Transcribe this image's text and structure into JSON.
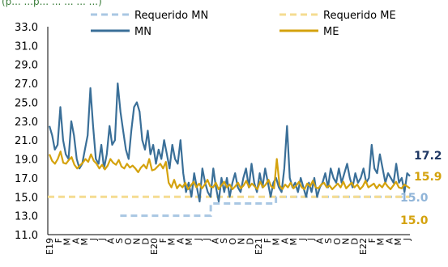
{
  "header_fragment": "(p... ...p... ... ... ... ...)",
  "chart_data": {
    "type": "line",
    "ylim": [
      11.0,
      33.0
    ],
    "yticks": [
      "11.0",
      "13.0",
      "15.0",
      "17.0",
      "19.0",
      "21.0",
      "23.0",
      "25.0",
      "27.0",
      "29.0",
      "31.0",
      "33.0"
    ],
    "x_labels": [
      "E19",
      "F",
      "M",
      "A",
      "M",
      "J",
      "J",
      "A",
      "S",
      "O",
      "N",
      "D",
      "E20",
      "F",
      "M",
      "A",
      "M",
      "J",
      "J",
      "A",
      "S",
      "O",
      "N",
      "D",
      "E21",
      "F",
      "M",
      "A",
      "M",
      "J",
      "J",
      "A",
      "S",
      "O",
      "N",
      "D",
      "E22",
      "F",
      "M",
      "A",
      "M",
      "J"
    ],
    "legend": [
      {
        "name": "Requerido MN",
        "style": "dashed",
        "color": "#a9c7e3"
      },
      {
        "name": "Requerido ME",
        "style": "dashed",
        "color": "#f5dc91"
      },
      {
        "name": "MN",
        "style": "solid",
        "color": "#3a6f98"
      },
      {
        "name": "ME",
        "style": "solid",
        "color": "#d4a20d"
      }
    ],
    "series": [
      {
        "name": "MN",
        "values": [
          22.5,
          21.5,
          20.0,
          20.5,
          24.5,
          21.0,
          19.5,
          19.0,
          23.0,
          21.5,
          19.0,
          18.0,
          18.5,
          20.0,
          21.5,
          26.5,
          22.5,
          19.0,
          18.5,
          20.5,
          18.0,
          19.5,
          22.5,
          20.5,
          21.0,
          27.0,
          24.0,
          22.0,
          20.0,
          19.0,
          22.0,
          24.5,
          25.0,
          24.0,
          21.0,
          20.0,
          22.0,
          19.5,
          20.5,
          18.5,
          20.0,
          19.0,
          21.0,
          19.5,
          18.0,
          20.5,
          19.0,
          18.5,
          21.0,
          17.5,
          15.5,
          16.5,
          15.0,
          17.5,
          16.0,
          14.5,
          18.0,
          16.5,
          15.5,
          15.0,
          18.0,
          16.0,
          14.5,
          17.0,
          15.5,
          17.0,
          15.0,
          16.5,
          17.5,
          16.0,
          15.5,
          17.0,
          18.0,
          16.0,
          18.5,
          16.5,
          15.5,
          17.5,
          16.0,
          18.0,
          16.5,
          15.0,
          16.5,
          17.0,
          16.0,
          15.5,
          18.0,
          22.5,
          17.0,
          16.0,
          16.5,
          15.5,
          17.0,
          16.0,
          15.0,
          16.5,
          15.5,
          17.0,
          15.0,
          16.0,
          16.5,
          17.5,
          16.0,
          18.0,
          17.0,
          16.5,
          18.0,
          16.5,
          17.5,
          18.5,
          17.0,
          16.0,
          17.5,
          16.5,
          17.0,
          18.0,
          16.5,
          17.0,
          20.5,
          18.0,
          17.5,
          19.5,
          18.0,
          16.5,
          17.5,
          17.0,
          16.5,
          18.5,
          16.5,
          17.0,
          15.5,
          17.5,
          17.2
        ],
        "color": "#3a6f98"
      },
      {
        "name": "ME",
        "values": [
          19.5,
          18.8,
          18.5,
          19.0,
          19.8,
          18.6,
          18.5,
          18.9,
          19.2,
          18.4,
          18.0,
          18.3,
          18.6,
          19.0,
          18.7,
          19.5,
          18.8,
          18.5,
          18.0,
          18.4,
          17.9,
          18.3,
          19.0,
          18.6,
          18.4,
          18.9,
          18.2,
          18.0,
          18.5,
          18.1,
          18.3,
          18.0,
          17.6,
          18.1,
          18.4,
          18.0,
          19.0,
          17.8,
          17.9,
          18.2,
          18.5,
          18.0,
          18.7,
          16.5,
          16.0,
          16.8,
          15.9,
          16.3,
          16.0,
          16.5,
          15.8,
          16.2,
          16.6,
          16.0,
          16.4,
          15.9,
          16.3,
          16.8,
          16.1,
          16.0,
          16.5,
          15.8,
          16.2,
          16.6,
          16.0,
          16.3,
          15.8,
          16.1,
          16.5,
          15.9,
          16.2,
          16.7,
          16.0,
          16.4,
          16.1,
          15.8,
          16.6,
          16.0,
          16.3,
          16.8,
          16.1,
          15.9,
          19.0,
          16.2,
          15.8,
          16.3,
          16.0,
          16.5,
          15.9,
          16.2,
          16.6,
          16.0,
          15.8,
          16.4,
          16.1,
          16.7,
          16.0,
          15.9,
          16.3,
          16.5,
          16.0,
          16.2,
          15.8,
          16.1,
          16.4,
          16.0,
          16.6,
          15.9,
          16.2,
          16.5,
          16.0,
          16.3,
          15.8,
          16.1,
          16.7,
          16.0,
          16.2,
          16.4,
          15.9,
          16.3,
          16.0,
          16.5,
          16.1,
          15.8,
          16.2,
          16.6,
          16.0,
          15.9,
          16.3,
          16.1,
          15.9
        ],
        "color": "#d4a20d"
      },
      {
        "name": "Requerido MN",
        "segments": [
          {
            "x": [
              0.2,
              0.45
            ],
            "y": 13.0
          },
          {
            "x": [
              0.45,
              0.63
            ],
            "y": 14.3
          },
          {
            "x": [
              0.63,
              1.0
            ],
            "y": 15.0
          }
        ],
        "color": "#a9c7e3"
      },
      {
        "name": "Requerido ME",
        "segments": [
          {
            "x": [
              0.0,
              1.0
            ],
            "y": 15.0
          }
        ],
        "color": "#f5dc91"
      }
    ],
    "end_labels": [
      {
        "text": "17.2",
        "color": "#1f3864"
      },
      {
        "text": "15.9",
        "color": "#d4a20d"
      },
      {
        "text": "15.0",
        "color": "#8fb4d8"
      },
      {
        "text": "15.0",
        "color": "#d4a20d"
      }
    ]
  }
}
